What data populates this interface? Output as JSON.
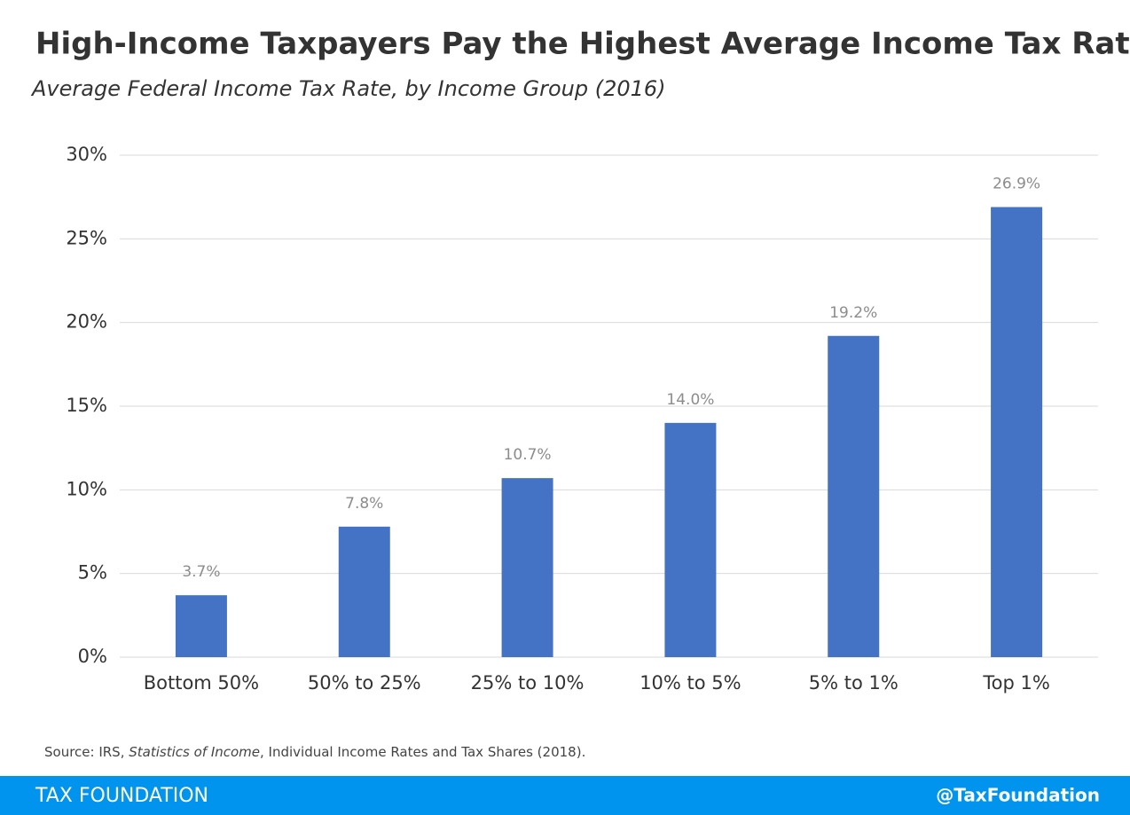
{
  "chart_data": {
    "type": "bar",
    "title": "High-Income Taxpayers Pay the Highest Average Income Tax Rate",
    "subtitle": "Average Federal Income Tax Rate, by Income Group (2016)",
    "categories": [
      "Bottom 50%",
      "50% to 25%",
      "25% to 10%",
      "10% to 5%",
      "5% to 1%",
      "Top 1%"
    ],
    "values": [
      3.7,
      7.8,
      10.7,
      14.0,
      19.2,
      26.9
    ],
    "value_labels": [
      "3.7%",
      "7.8%",
      "10.7%",
      "14.0%",
      "19.2%",
      "26.9%"
    ],
    "color": "#4472c4",
    "ylim": [
      0,
      30
    ],
    "yticks": [
      {
        "value": 0,
        "label": "0%"
      },
      {
        "value": 5,
        "label": "5%"
      },
      {
        "value": 10,
        "label": "10%"
      },
      {
        "value": 15,
        "label": "15%"
      },
      {
        "value": 20,
        "label": "20%"
      },
      {
        "value": 25,
        "label": "25%"
      },
      {
        "value": 30,
        "label": "30%"
      }
    ],
    "grid": true,
    "source": [
      "Source: IRS, ",
      "Statistics of Income",
      ", Individual Income Rates and Tax Shares (2018)."
    ]
  },
  "footer": {
    "left": "TAX FOUNDATION",
    "right": "@TaxFoundation"
  }
}
